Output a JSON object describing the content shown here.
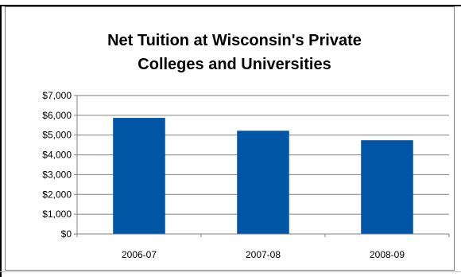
{
  "chart_data": {
    "type": "bar",
    "title": "Net Tuition at Wisconsin's Private\nColleges and Universities",
    "categories": [
      "2006-07",
      "2007-08",
      "2008-09"
    ],
    "values": [
      5870,
      5220,
      4740
    ],
    "ylim": [
      0,
      7000
    ],
    "y_tick_values": [
      0,
      1000,
      2000,
      3000,
      4000,
      5000,
      6000,
      7000
    ],
    "y_tick_labels": [
      "$0",
      "$1,000",
      "$2,000",
      "$3,000",
      "$4,000",
      "$5,000",
      "$6,000",
      "$7,000"
    ],
    "xlabel": "",
    "ylabel": "",
    "grid": true,
    "legend": "none",
    "bar_color": "#0055A5"
  }
}
